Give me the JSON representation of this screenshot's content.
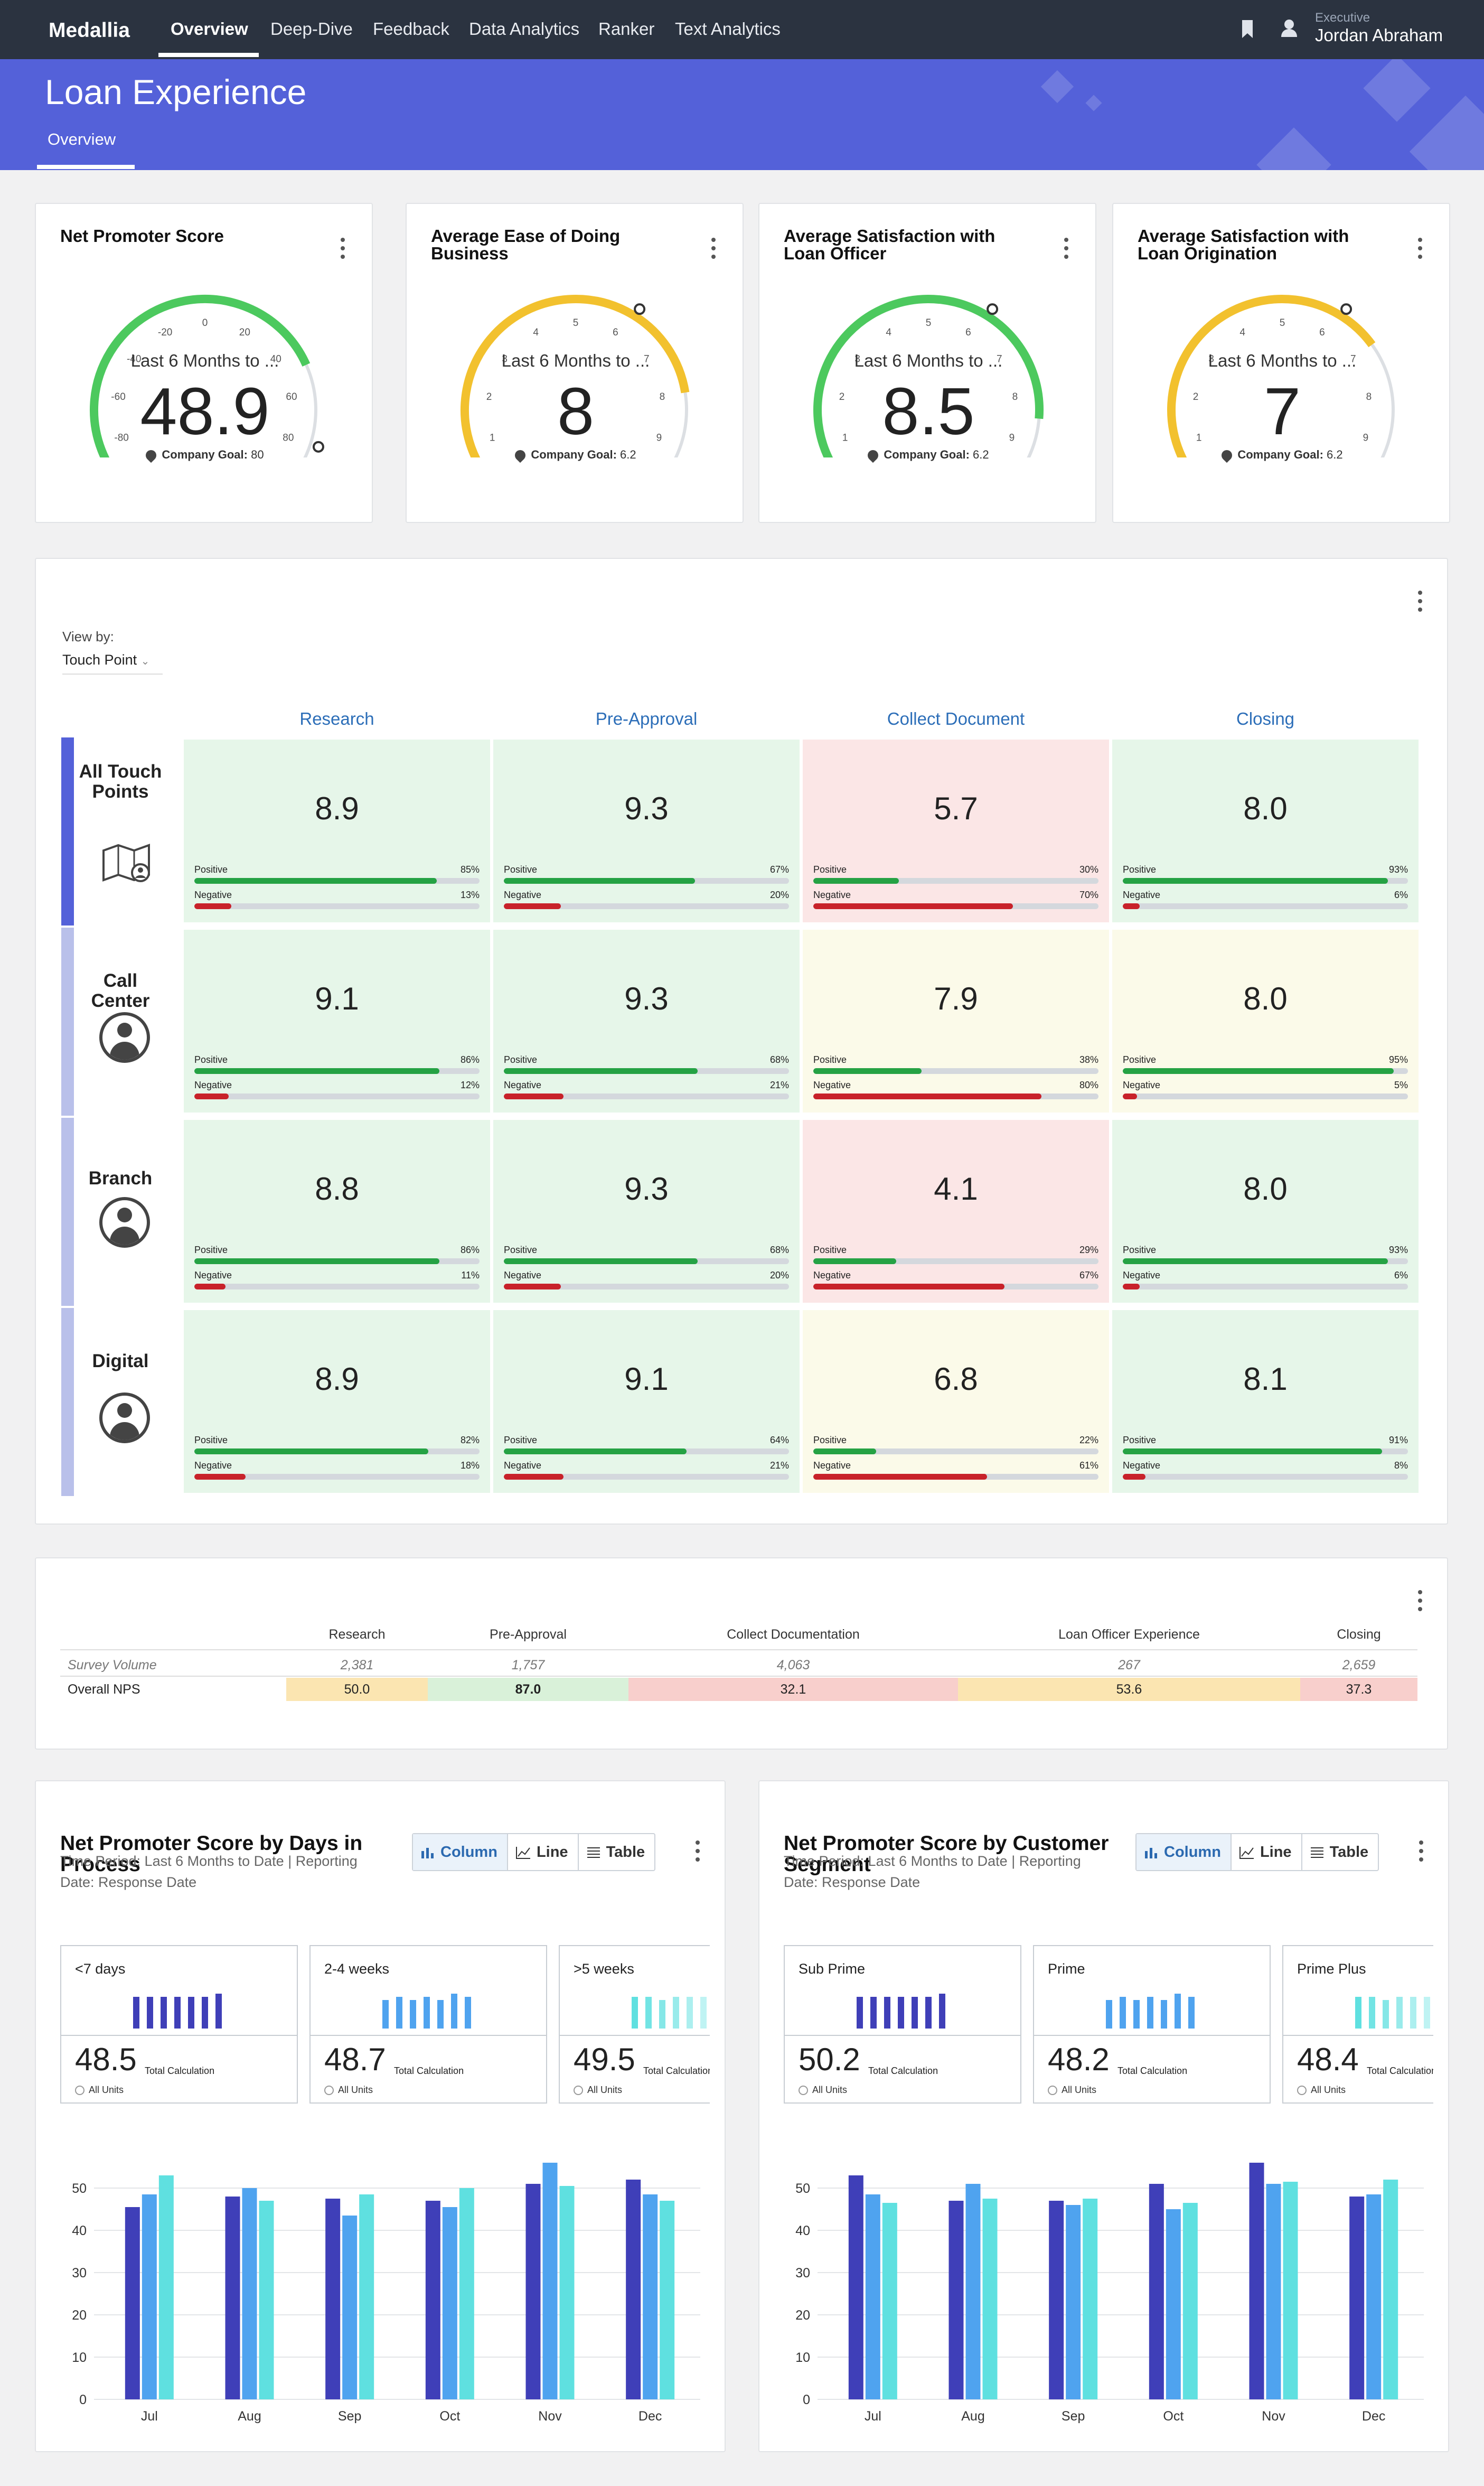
{
  "nav": {
    "logo": "Medallia",
    "items": [
      "Overview",
      "Deep-Dive",
      "Feedback",
      "Data Analytics",
      "Ranker",
      "Text Analytics"
    ],
    "user_role": "Executive",
    "user_name": "Jordan Abraham",
    "icons": [
      "bookmark-icon",
      "user-icon"
    ]
  },
  "header": {
    "title": "Loan Experience",
    "tab": "Overview"
  },
  "colors": {
    "nav_bg": "#2b3340",
    "banner_bg": "#5461d9",
    "positive": "#25a244",
    "negative": "#c8222a",
    "green_cell": "#e6f6e9",
    "red_cell": "#fbe6e6",
    "yellow_cell": "#fbfae9",
    "gauge_green": "#4cc95e",
    "gauge_yellow": "#f2c12e",
    "link_blue": "#2c6eb8"
  },
  "gauges": [
    {
      "title": "Net Promoter Score",
      "period": "Last 6 Months to ...",
      "value": "48.9",
      "goal_label": "Company Goal:",
      "goal_value": "80",
      "min": -100,
      "max": 100,
      "score": 48.9,
      "goal": 80,
      "color": "#4cc95e",
      "ticks": [
        "-100",
        "-80",
        "-60",
        "-40",
        "-20",
        "0",
        "20",
        "40",
        "60",
        "80",
        "100"
      ]
    },
    {
      "title": "Average Ease of Doing Business",
      "period": "Last 6 Months to ...",
      "value": "8",
      "goal_label": "Company Goal:",
      "goal_value": "6.2",
      "min": 0,
      "max": 10,
      "score": 8,
      "goal": 6.2,
      "color": "#f2c12e",
      "ticks": [
        "0",
        "1",
        "2",
        "3",
        "4",
        "5",
        "6",
        "7",
        "8",
        "9",
        "10"
      ]
    },
    {
      "title": "Average Satisfaction with Loan Officer",
      "period": "Last 6 Months to ...",
      "value": "8.5",
      "goal_label": "Company Goal:",
      "goal_value": "6.2",
      "min": 0,
      "max": 10,
      "score": 8.5,
      "goal": 6.2,
      "color": "#4cc95e",
      "ticks": [
        "0",
        "1",
        "2",
        "3",
        "4",
        "5",
        "6",
        "7",
        "8",
        "9",
        "10"
      ]
    },
    {
      "title": "Average Satisfaction with Loan Origination",
      "period": "Last 6 Months to ...",
      "value": "7",
      "goal_label": "Company Goal:",
      "goal_value": "6.2",
      "min": 0,
      "max": 10,
      "score": 7,
      "goal": 6.2,
      "color": "#f2c12e",
      "ticks": [
        "0",
        "1",
        "2",
        "3",
        "4",
        "5",
        "6",
        "7",
        "8",
        "9",
        "10"
      ]
    }
  ],
  "heatmap": {
    "view_by_label": "View by:",
    "view_by_value": "Touch Point",
    "positive_label": "Positive",
    "negative_label": "Negative",
    "columns": [
      "Research",
      "Pre-Approval",
      "Collect Document",
      "Closing"
    ],
    "rows": [
      {
        "label": "All Touch Points",
        "icon": "map-user-icon",
        "cells": [
          {
            "score": "8.9",
            "pos": "85%",
            "neg": "13%",
            "status": "green"
          },
          {
            "score": "9.3",
            "pos": "67%",
            "neg": "20%",
            "status": "green"
          },
          {
            "score": "5.7",
            "pos": "30%",
            "neg": "70%",
            "status": "red"
          },
          {
            "score": "8.0",
            "pos": "93%",
            "neg": "6%",
            "status": "green"
          }
        ]
      },
      {
        "label": "Call Center",
        "icon": "user-circle-icon",
        "cells": [
          {
            "score": "9.1",
            "pos": "86%",
            "neg": "12%",
            "status": "green"
          },
          {
            "score": "9.3",
            "pos": "68%",
            "neg": "21%",
            "status": "green"
          },
          {
            "score": "7.9",
            "pos": "38%",
            "neg": "80%",
            "status": "yellow"
          },
          {
            "score": "8.0",
            "pos": "95%",
            "neg": "5%",
            "status": "yellow"
          }
        ]
      },
      {
        "label": "Branch",
        "icon": "user-circle-icon",
        "cells": [
          {
            "score": "8.8",
            "pos": "86%",
            "neg": "11%",
            "status": "green"
          },
          {
            "score": "9.3",
            "pos": "68%",
            "neg": "20%",
            "status": "green"
          },
          {
            "score": "4.1",
            "pos": "29%",
            "neg": "67%",
            "status": "red"
          },
          {
            "score": "8.0",
            "pos": "93%",
            "neg": "6%",
            "status": "green"
          }
        ]
      },
      {
        "label": "Digital",
        "icon": "user-circle-icon",
        "cells": [
          {
            "score": "8.9",
            "pos": "82%",
            "neg": "18%",
            "status": "green"
          },
          {
            "score": "9.1",
            "pos": "64%",
            "neg": "21%",
            "status": "green"
          },
          {
            "score": "6.8",
            "pos": "22%",
            "neg": "61%",
            "status": "yellow"
          },
          {
            "score": "8.1",
            "pos": "91%",
            "neg": "8%",
            "status": "green"
          }
        ]
      }
    ]
  },
  "summary_table": {
    "columns": [
      "Research",
      "Pre-Approval",
      "Collect Documentation",
      "Loan Officer Experience",
      "Closing"
    ],
    "rows": [
      {
        "label": "Survey Volume",
        "values": [
          "2,381",
          "1,757",
          "4,063",
          "267",
          "2,659"
        ]
      },
      {
        "label": "Overall NPS",
        "values": [
          "50.0",
          "87.0",
          "32.1",
          "53.6",
          "37.3"
        ],
        "fills": [
          "#fbe5b1",
          "#d9f1d9",
          "#f8cfcc",
          "#fbe5b1",
          "#f8cfcc"
        ]
      }
    ]
  },
  "charts": [
    {
      "title": "Net Promoter Score by Days in Process",
      "time_period": "Time Period: Last 6 Months to Date | Reporting",
      "date": "Date: Response Date",
      "toggles": [
        "Column",
        "Line",
        "Table"
      ],
      "kpis": [
        {
          "label": "<7 days",
          "value": "48.5",
          "calc": "Total Calculation",
          "units": "All Units",
          "color": "#3f3fb8"
        },
        {
          "label": "2-4 weeks",
          "value": "48.7",
          "calc": "Total Calculation",
          "units": "All Units",
          "color": "#4fa3ef"
        },
        {
          "label": ">5 weeks",
          "value": "49.5",
          "calc": "Total Calculation",
          "units": "All Units",
          "color": "#5fe0e0"
        }
      ]
    },
    {
      "title": "Net Promoter Score by Customer Segment",
      "time_period": "Time Period: Last 6 Months to Date | Reporting",
      "date": "Date: Response Date",
      "toggles": [
        "Column",
        "Line",
        "Table"
      ],
      "kpis": [
        {
          "label": "Sub Prime",
          "value": "50.2",
          "calc": "Total Calculation",
          "units": "All Units",
          "color": "#3f3fb8"
        },
        {
          "label": "Prime",
          "value": "48.2",
          "calc": "Total Calculation",
          "units": "All Units",
          "color": "#4fa3ef"
        },
        {
          "label": "Prime Plus",
          "value": "48.4",
          "calc": "Total Calculation",
          "units": "All Units",
          "color": "#5fe0e0"
        }
      ]
    }
  ],
  "chart_data": [
    {
      "type": "bar",
      "categories": [
        "Jul",
        "Aug",
        "Sep",
        "Oct",
        "Nov",
        "Dec"
      ],
      "yticks": [
        "0",
        "10",
        "20",
        "30",
        "40",
        "50"
      ],
      "ylim": [
        0,
        60
      ],
      "grid": true,
      "series": [
        {
          "name": "<7 days",
          "color": "#3f3fb8",
          "values": [
            45.5,
            48,
            47.5,
            47,
            51,
            52
          ]
        },
        {
          "name": "2-4 weeks",
          "color": "#4fa3ef",
          "values": [
            48.5,
            50,
            43.5,
            45.5,
            56,
            48.5
          ]
        },
        {
          "name": ">5 weeks",
          "color": "#5fe0e0",
          "values": [
            53,
            47,
            48.5,
            50,
            50.5,
            47
          ]
        }
      ]
    },
    {
      "type": "bar",
      "categories": [
        "Jul",
        "Aug",
        "Sep",
        "Oct",
        "Nov",
        "Dec"
      ],
      "yticks": [
        "0",
        "10",
        "20",
        "30",
        "40",
        "50"
      ],
      "ylim": [
        0,
        60
      ],
      "grid": true,
      "series": [
        {
          "name": "Sub Prime",
          "color": "#3f3fb8",
          "values": [
            53,
            47,
            47,
            51,
            56,
            48
          ]
        },
        {
          "name": "Prime",
          "color": "#4fa3ef",
          "values": [
            48.5,
            51,
            46,
            45,
            51,
            48.5
          ]
        },
        {
          "name": "Prime Plus",
          "color": "#5fe0e0",
          "values": [
            46.5,
            47.5,
            47.5,
            46.5,
            51.5,
            52
          ]
        }
      ]
    }
  ]
}
